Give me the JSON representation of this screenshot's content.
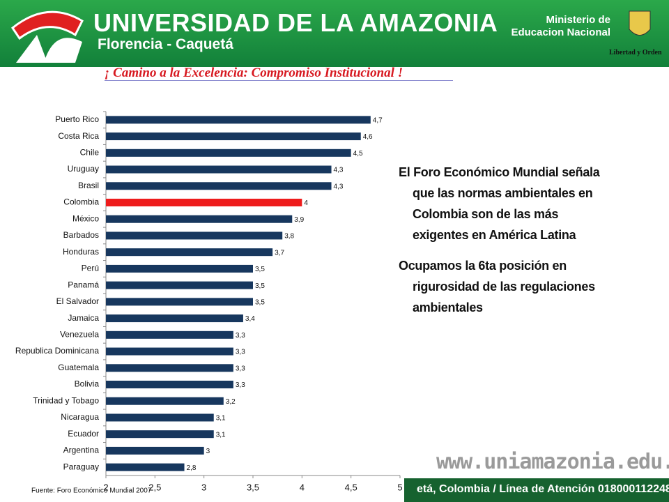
{
  "header": {
    "title": "UNIVERSIDAD DE LA AMAZONIA",
    "subtitle": "Florencia - Caquetá",
    "ministry": [
      "Ministerio de",
      "Educacion Nacional"
    ],
    "motto": "Libertad y Orden",
    "slogan": "¡ Camino a la Excelencia: Compromiso Institucional !"
  },
  "text": {
    "paragraphs": [
      [
        "El Foro Económico Mundial señala",
        "que las normas ambientales en",
        "Colombia son de las más",
        "exigentes en América Latina"
      ],
      [
        "Ocupamos la 6ta posición en",
        "rigurosidad de las regulaciones",
        "ambientales"
      ]
    ]
  },
  "footer": {
    "website": "www.uniamazonia.edu.co",
    "contact": "etá, Colombia / Línea de Atención 018000112248"
  },
  "chart_data": {
    "type": "hbar",
    "source": "Fuente: Foro Económico Mundial 2007",
    "categories": [
      "Puerto Rico",
      "Costa Rica",
      "Chile",
      "Uruguay",
      "Brasil",
      "Colombia",
      "México",
      "Barbados",
      "Honduras",
      "Perú",
      "Panamá",
      "El Salvador",
      "Jamaica",
      "Venezuela",
      "Republica Dominicana",
      "Guatemala",
      "Bolivia",
      "Trinidad y Tobago",
      "Nicaragua",
      "Ecuador",
      "Argentina",
      "Paraguay"
    ],
    "values": [
      4.7,
      4.6,
      4.5,
      4.3,
      4.3,
      4,
      3.9,
      3.8,
      3.7,
      3.5,
      3.5,
      3.5,
      3.4,
      3.3,
      3.3,
      3.3,
      3.3,
      3.2,
      3.1,
      3.1,
      3,
      2.8
    ],
    "value_labels": [
      "4,7",
      "4,6",
      "4,5",
      "4,3",
      "4,3",
      "4",
      "3,9",
      "3,8",
      "3,7",
      "3,5",
      "3,5",
      "3,5",
      "3,4",
      "3,3",
      "3,3",
      "3,3",
      "3,3",
      "3,2",
      "3,1",
      "3,1",
      "3",
      "2,8"
    ],
    "colors": [
      "#17375e",
      "#17375e",
      "#17375e",
      "#17375e",
      "#17375e",
      "#ee1c1c",
      "#17375e",
      "#17375e",
      "#17375e",
      "#17375e",
      "#17375e",
      "#17375e",
      "#17375e",
      "#17375e",
      "#17375e",
      "#17375e",
      "#17375e",
      "#17375e",
      "#17375e",
      "#17375e",
      "#17375e",
      "#17375e"
    ],
    "xlim": [
      2,
      5
    ],
    "xticks": [
      2,
      {
        "value": 2.5,
        "label": "2,5"
      },
      3,
      {
        "value": 3.5,
        "label": "3,5"
      },
      4,
      {
        "value": 4.5,
        "label": "4,5"
      },
      5
    ]
  }
}
